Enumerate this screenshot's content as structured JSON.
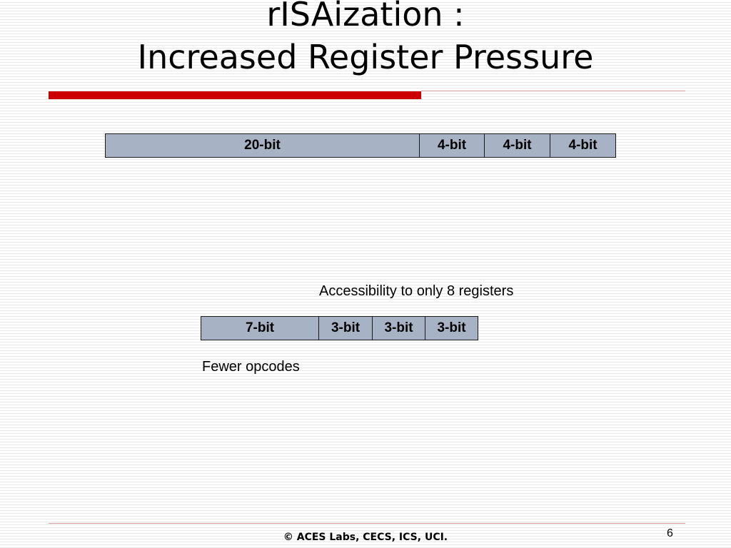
{
  "slide": {
    "title_line1": "rISAization :",
    "title_line2": "Increased Register Pressure"
  },
  "instruction_32bit": {
    "fields": [
      {
        "label": "20-bit",
        "bits": 20
      },
      {
        "label": "4-bit",
        "bits": 4
      },
      {
        "label": "4-bit",
        "bits": 4
      },
      {
        "label": "4-bit",
        "bits": 4
      }
    ]
  },
  "instruction_16bit": {
    "fields": [
      {
        "label": "7-bit",
        "bits": 7
      },
      {
        "label": "3-bit",
        "bits": 3
      },
      {
        "label": "3-bit",
        "bits": 3
      },
      {
        "label": "3-bit",
        "bits": 3
      }
    ]
  },
  "notes": {
    "accessibility": "Accessibility to only 8 registers",
    "fewer_opcodes": "Fewer opcodes"
  },
  "footer": {
    "copyright": "© ACES Labs, CECS, ICS, UCI.",
    "page_number": "6"
  },
  "colors": {
    "title_accent_bar": "#cc0000",
    "field_fill": "#a7b3c5",
    "field_border": "#1a1a1a"
  }
}
